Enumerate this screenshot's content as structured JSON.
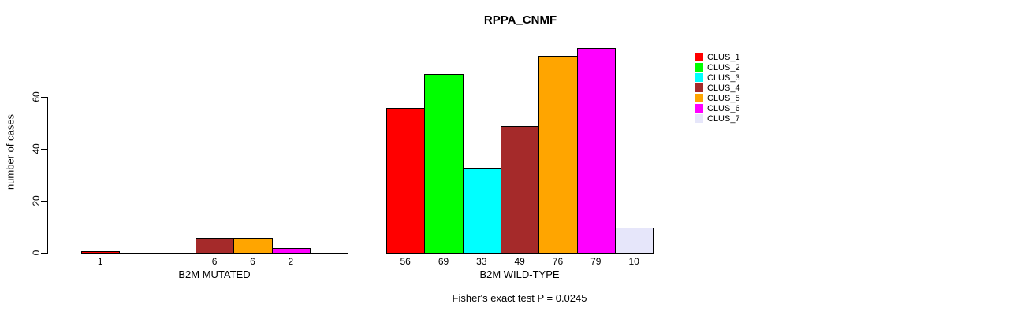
{
  "chart_data": {
    "type": "bar",
    "title": "RPPA_CNMF",
    "ylabel": "number of cases",
    "yticks": [
      0,
      20,
      40,
      60
    ],
    "ylim": [
      0,
      79
    ],
    "grid": false,
    "bar_gap": 0,
    "legend_position": "right",
    "clusters": [
      {
        "name": "CLUS_1",
        "color": "#FF0000"
      },
      {
        "name": "CLUS_2",
        "color": "#00FF00"
      },
      {
        "name": "CLUS_3",
        "color": "#00FFFF"
      },
      {
        "name": "CLUS_4",
        "color": "#A52A2A"
      },
      {
        "name": "CLUS_5",
        "color": "#FFA500"
      },
      {
        "name": "CLUS_6",
        "color": "#FF00FF"
      },
      {
        "name": "CLUS_7",
        "color": "#E6E6FA"
      }
    ],
    "panels": [
      {
        "xlabel": "B2M MUTATED",
        "values": [
          1,
          0,
          0,
          6,
          6,
          2,
          0
        ],
        "bar_labels": [
          "1",
          "",
          "",
          "6",
          "6",
          "2",
          ""
        ]
      },
      {
        "xlabel": "B2M WILD-TYPE",
        "values": [
          56,
          69,
          33,
          49,
          76,
          79,
          10
        ],
        "bar_labels": [
          "56",
          "69",
          "33",
          "49",
          "76",
          "79",
          "10"
        ]
      }
    ],
    "footnote": "Fisher's exact test P = 0.0245"
  }
}
